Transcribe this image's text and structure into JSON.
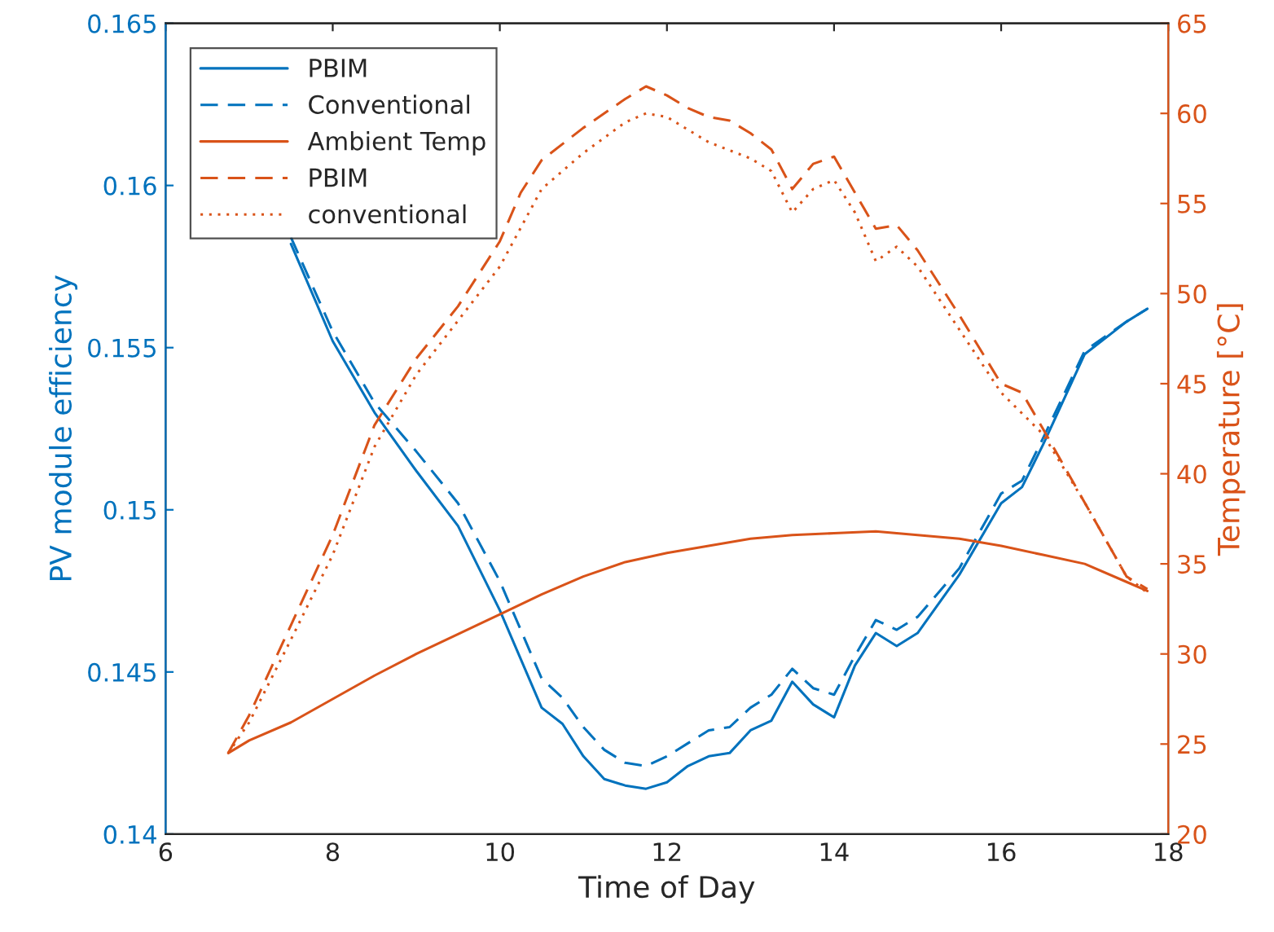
{
  "chart_data": {
    "type": "line",
    "xlabel": "Time of Day",
    "ylabel": "PV module efficiency",
    "y2label": "Temperature [°C]",
    "xlim": [
      6,
      18
    ],
    "xticks": [
      6,
      8,
      10,
      12,
      14,
      16,
      18
    ],
    "ylim": [
      0.14,
      0.165
    ],
    "yticks": [
      0.14,
      0.145,
      0.15,
      0.155,
      0.16,
      0.165
    ],
    "y2lim": [
      20,
      65
    ],
    "y2ticks": [
      20,
      25,
      30,
      35,
      40,
      45,
      50,
      55,
      60,
      65
    ],
    "grid": false,
    "legend": "top left",
    "marker": "none",
    "series": [
      {
        "name": "PBIM",
        "color": "#0072bd",
        "line_style": "solid",
        "x": [
          7.5,
          8,
          8.5,
          9,
          9.5,
          10,
          10.5,
          10.75,
          11,
          11.25,
          11.5,
          11.75,
          12,
          12.25,
          12.5,
          12.75,
          13,
          13.25,
          13.5,
          13.75,
          14,
          14.25,
          14.5,
          14.75,
          15,
          15.5,
          16,
          16.25,
          16.5,
          17,
          17.5,
          17.75
        ],
        "values": [
          0.1582,
          0.1552,
          0.153,
          0.1512,
          0.1495,
          0.1469,
          0.1439,
          0.1434,
          0.1424,
          0.1417,
          0.1415,
          0.1414,
          0.1416,
          0.1421,
          0.1424,
          0.1425,
          0.1432,
          0.1435,
          0.1447,
          0.144,
          0.1436,
          0.1452,
          0.1462,
          0.1458,
          0.1462,
          0.148,
          0.1502,
          0.1507,
          0.152,
          0.1548,
          0.1558,
          0.1562
        ]
      },
      {
        "name": "Conventional",
        "color": "#0072bd",
        "line_style": "dashed",
        "x": [
          7.5,
          8,
          8.5,
          9,
          9.5,
          10,
          10.5,
          10.75,
          11,
          11.25,
          11.5,
          11.75,
          12,
          12.25,
          12.5,
          12.75,
          13,
          13.25,
          13.5,
          13.75,
          14,
          14.25,
          14.5,
          14.75,
          15,
          15.5,
          16,
          16.25,
          16.5,
          17,
          17.5,
          17.75
        ],
        "values": [
          0.1584,
          0.1555,
          0.1533,
          0.1518,
          0.1502,
          0.1478,
          0.1448,
          0.1442,
          0.1433,
          0.1426,
          0.1422,
          0.1421,
          0.1424,
          0.1428,
          0.1432,
          0.1433,
          0.1439,
          0.1443,
          0.1451,
          0.1445,
          0.1443,
          0.1455,
          0.1466,
          0.1463,
          0.1467,
          0.1482,
          0.1505,
          0.1509,
          0.1522,
          0.1549,
          0.1558,
          0.1562
        ]
      },
      {
        "name": "Ambient Temp",
        "color": "#d95319",
        "line_style": "solid",
        "axis": "y2",
        "x": [
          6.75,
          7,
          7.5,
          8,
          8.5,
          9,
          9.5,
          10,
          10.5,
          11,
          11.5,
          12,
          12.5,
          13,
          13.5,
          14,
          14.5,
          15,
          15.5,
          16,
          16.5,
          17,
          17.5,
          17.75
        ],
        "values": [
          24.5,
          25.2,
          26.2,
          27.5,
          28.8,
          30.0,
          31.1,
          32.2,
          33.3,
          34.3,
          35.1,
          35.6,
          36.0,
          36.4,
          36.6,
          36.7,
          36.8,
          36.6,
          36.4,
          36.0,
          35.5,
          35.0,
          34.0,
          33.5
        ]
      },
      {
        "name": "PBIM",
        "color": "#d95319",
        "line_style": "dashed",
        "axis": "y2",
        "x": [
          6.75,
          7,
          7.5,
          8,
          8.5,
          9,
          9.5,
          10,
          10.25,
          10.5,
          11,
          11.5,
          11.75,
          12,
          12.25,
          12.5,
          12.75,
          13,
          13.25,
          13.5,
          13.75,
          14,
          14.25,
          14.5,
          14.75,
          15,
          15.5,
          16,
          16.25,
          16.5,
          17,
          17.5,
          17.75
        ],
        "values": [
          24.5,
          26.6,
          31.6,
          36.6,
          42.7,
          46.4,
          49.3,
          52.9,
          55.6,
          57.4,
          59.2,
          60.8,
          61.5,
          61.0,
          60.3,
          59.8,
          59.6,
          58.9,
          58.0,
          55.8,
          57.2,
          57.6,
          55.6,
          53.6,
          53.8,
          52.4,
          48.8,
          45.0,
          44.5,
          42.5,
          38.4,
          34.3,
          33.6
        ]
      },
      {
        "name": "conventional",
        "color": "#d95319",
        "line_style": "dotted",
        "axis": "y2",
        "x": [
          6.75,
          7,
          7.5,
          8,
          8.5,
          9,
          9.5,
          10,
          10.5,
          11,
          11.5,
          11.75,
          12,
          12.5,
          13,
          13.25,
          13.5,
          13.75,
          14,
          14.25,
          14.5,
          14.75,
          15,
          15.5,
          16,
          16.5,
          17,
          17.5,
          17.75
        ],
        "values": [
          24.5,
          26.2,
          30.8,
          35.5,
          41.5,
          45.5,
          48.5,
          51.5,
          55.8,
          57.8,
          59.5,
          60.0,
          59.8,
          58.4,
          57.5,
          56.8,
          54.5,
          55.8,
          56.3,
          54.5,
          51.8,
          52.6,
          51.5,
          48.0,
          44.5,
          42.2,
          38.4,
          34.3,
          33.4
        ]
      }
    ]
  }
}
